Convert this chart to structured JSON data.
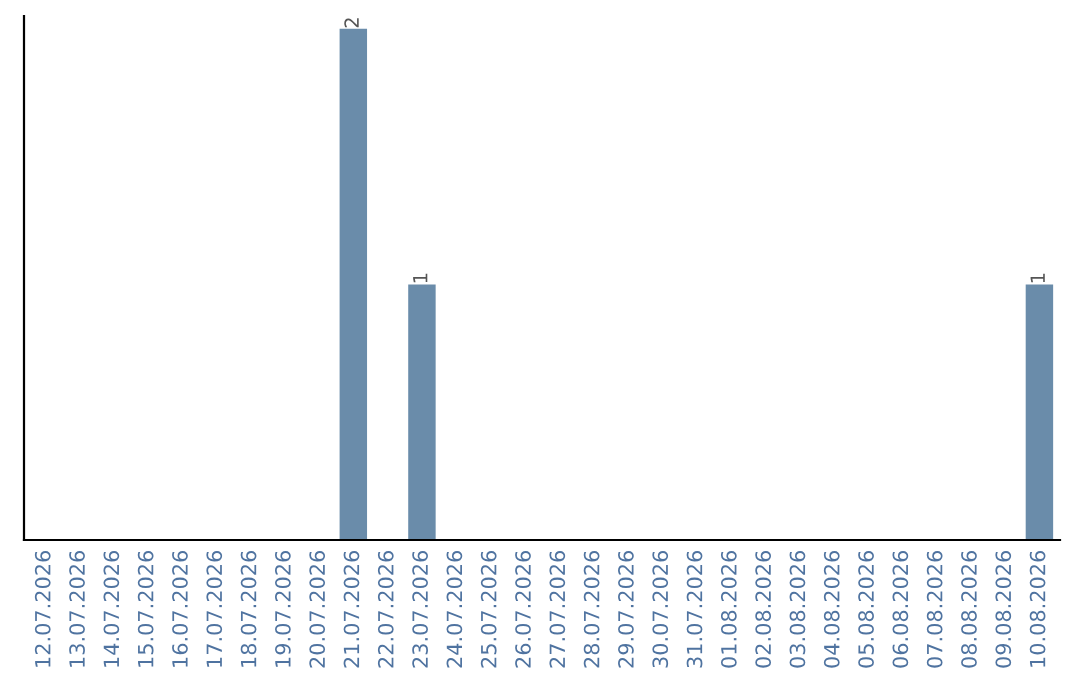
{
  "chart_data": {
    "type": "bar",
    "categories": [
      "12.07.2026",
      "13.07.2026",
      "14.07.2026",
      "15.07.2026",
      "16.07.2026",
      "17.07.2026",
      "18.07.2026",
      "19.07.2026",
      "20.07.2026",
      "21.07.2026",
      "22.07.2026",
      "23.07.2026",
      "24.07.2026",
      "25.07.2026",
      "26.07.2026",
      "27.07.2026",
      "28.07.2026",
      "29.07.2026",
      "30.07.2026",
      "31.07.2026",
      "01.08.2026",
      "02.08.2026",
      "03.08.2026",
      "04.08.2026",
      "05.08.2026",
      "06.08.2026",
      "07.08.2026",
      "08.08.2026",
      "09.08.2026",
      "10.08.2026"
    ],
    "values": [
      0,
      0,
      0,
      0,
      0,
      0,
      0,
      0,
      0,
      2,
      0,
      1,
      0,
      0,
      0,
      0,
      0,
      0,
      0,
      0,
      0,
      0,
      0,
      0,
      0,
      0,
      0,
      0,
      0,
      1
    ],
    "value_labels": [
      null,
      null,
      null,
      null,
      null,
      null,
      null,
      null,
      null,
      "2",
      null,
      "1",
      null,
      null,
      null,
      null,
      null,
      null,
      null,
      null,
      null,
      null,
      null,
      null,
      null,
      null,
      null,
      null,
      null,
      "1"
    ],
    "color": "#6a8caa",
    "ylim": [
      0,
      2.05
    ],
    "tick_labels": "x",
    "grid": false,
    "legend": false
  }
}
